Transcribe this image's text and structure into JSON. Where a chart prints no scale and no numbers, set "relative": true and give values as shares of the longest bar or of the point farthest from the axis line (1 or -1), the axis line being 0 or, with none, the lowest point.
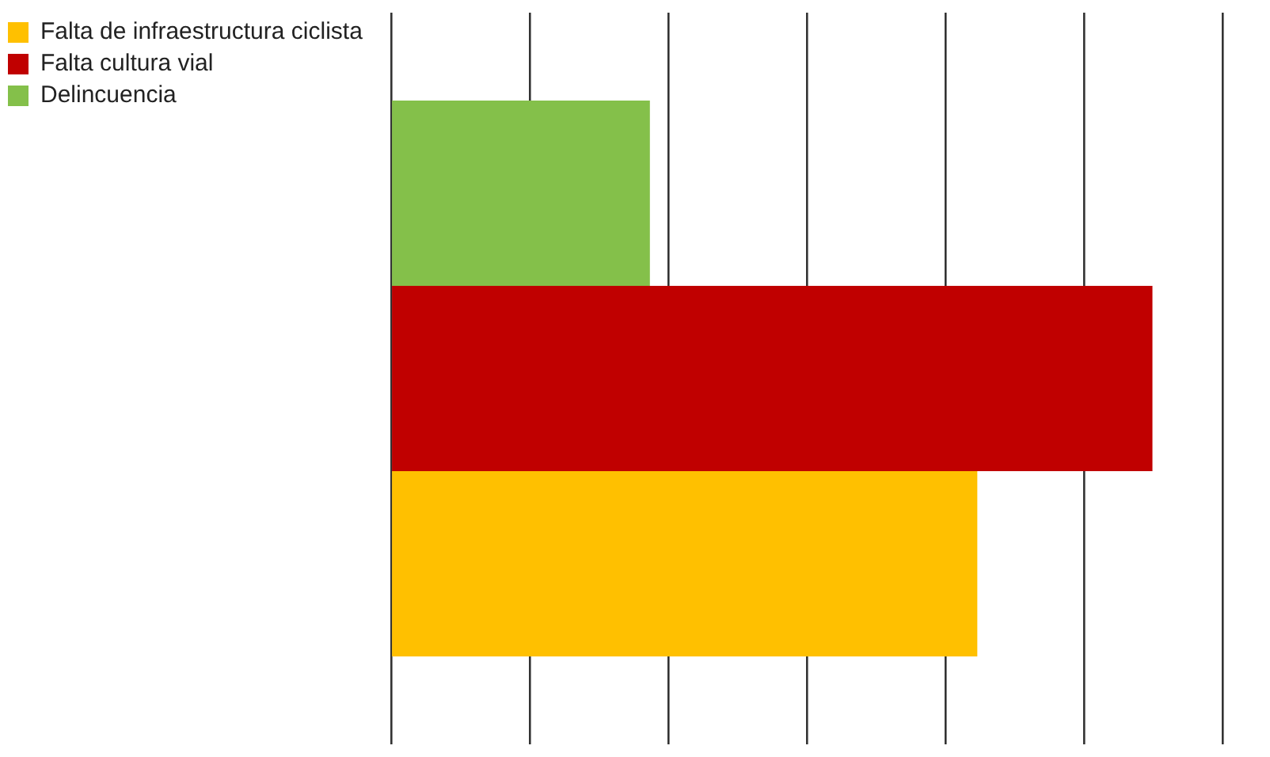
{
  "chart_data": {
    "type": "bar",
    "orientation": "horizontal",
    "relative": true,
    "categories": [
      null
    ],
    "grid": "x",
    "legend": "left",
    "series": [
      {
        "name": "Delincuencia",
        "color": "#84c04a",
        "values": [
          0.34
        ]
      },
      {
        "name": "Falta cultura vial",
        "color": "#c00000",
        "values": [
          1
        ]
      },
      {
        "name": "Falta de infraestructura ciclista",
        "color": "#ffc000",
        "values": [
          0.77
        ]
      }
    ]
  }
}
